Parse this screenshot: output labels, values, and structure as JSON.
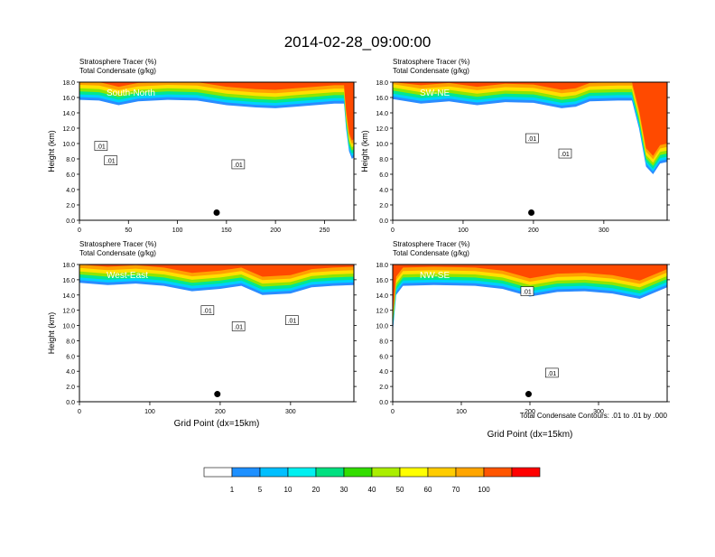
{
  "title": "2014-02-28_09:00:00",
  "colorbar": {
    "levels": [
      "1",
      "5",
      "10",
      "20",
      "30",
      "40",
      "50",
      "60",
      "70",
      "100"
    ],
    "colors": [
      "#ffffff",
      "#1e90ff",
      "#00bfff",
      "#00f0f0",
      "#00e080",
      "#33dd00",
      "#aaee00",
      "#ffff00",
      "#ffcc00",
      "#ffa500",
      "#ff5500",
      "#ff0000"
    ]
  },
  "contour_note": "Total Condensate Contours: .01 to .01 by .000",
  "chart_data": [
    {
      "type": "heatmap",
      "subtitle_1": "Stratosphere Tracer   (%)",
      "subtitle_2": "Total Condensate   (g/kg)",
      "cross_section": "South-North",
      "ylabel": "Height (km)",
      "xlabel": "",
      "ylim": [
        0,
        18
      ],
      "xlim": [
        0,
        280
      ],
      "yticks": [
        "0.0",
        "2.0",
        "4.0",
        "6.0",
        "8.0",
        "10.0",
        "12.0",
        "14.0",
        "16.0",
        "18.0"
      ],
      "xticks": [
        {
          "v": 0,
          "l": "0"
        },
        {
          "v": 50,
          "l": "50"
        },
        {
          "v": 100,
          "l": "100"
        },
        {
          "v": 150,
          "l": "150"
        },
        {
          "v": 200,
          "l": "200"
        },
        {
          "v": 250,
          "l": "250"
        }
      ],
      "tropopause": [
        [
          0,
          15.7
        ],
        [
          20,
          15.6
        ],
        [
          40,
          15.0
        ],
        [
          60,
          15.5
        ],
        [
          90,
          15.7
        ],
        [
          120,
          15.6
        ],
        [
          150,
          15.0
        ],
        [
          180,
          14.7
        ],
        [
          200,
          14.6
        ],
        [
          220,
          14.8
        ],
        [
          240,
          15.0
        ],
        [
          260,
          15.2
        ],
        [
          270,
          15.2
        ],
        [
          272,
          12
        ],
        [
          275,
          9
        ],
        [
          278,
          8
        ],
        [
          280,
          8.2
        ]
      ],
      "contour_labels": [
        {
          "x": 22,
          "y": 9.7,
          "t": ".01"
        },
        {
          "x": 32,
          "y": 7.8,
          "t": ".01"
        },
        {
          "x": 162,
          "y": 7.3,
          "t": ".01"
        }
      ],
      "marker": {
        "x": 140,
        "y": 1.0
      }
    },
    {
      "type": "heatmap",
      "subtitle_1": "Stratosphere Tracer   (%)",
      "subtitle_2": "Total Condensate   (g/kg)",
      "cross_section": "SW-NE",
      "ylabel": "Height (km)",
      "xlabel": "",
      "ylim": [
        0,
        18
      ],
      "xlim": [
        0,
        390
      ],
      "yticks": [
        "0.0",
        "2.0",
        "4.0",
        "6.0",
        "8.0",
        "10.0",
        "12.0",
        "14.0",
        "16.0",
        "18.0"
      ],
      "xticks": [
        {
          "v": 0,
          "l": "0"
        },
        {
          "v": 100,
          "l": "100"
        },
        {
          "v": 200,
          "l": "200"
        },
        {
          "v": 300,
          "l": "300"
        }
      ],
      "tropopause": [
        [
          0,
          15.8
        ],
        [
          40,
          15.2
        ],
        [
          80,
          15.5
        ],
        [
          120,
          15.0
        ],
        [
          160,
          15.4
        ],
        [
          200,
          15.3
        ],
        [
          240,
          14.6
        ],
        [
          260,
          14.8
        ],
        [
          280,
          15.5
        ],
        [
          320,
          15.6
        ],
        [
          340,
          15.6
        ],
        [
          350,
          12
        ],
        [
          360,
          7
        ],
        [
          370,
          6
        ],
        [
          380,
          7.4
        ],
        [
          390,
          7.6
        ]
      ],
      "contour_labels": [
        {
          "x": 198,
          "y": 10.7,
          "t": ".01"
        },
        {
          "x": 245,
          "y": 8.7,
          "t": ".01"
        }
      ],
      "marker": {
        "x": 197,
        "y": 1.0
      }
    },
    {
      "type": "heatmap",
      "subtitle_1": "Stratosphere Tracer   (%)",
      "subtitle_2": "Total Condensate   (g/kg)",
      "cross_section": "West-East",
      "ylabel": "Height (km)",
      "xlabel": "Grid Point (dx=15km)",
      "ylim": [
        0,
        18
      ],
      "xlim": [
        0,
        390
      ],
      "yticks": [
        "0.0",
        "2.0",
        "4.0",
        "6.0",
        "8.0",
        "10.0",
        "12.0",
        "14.0",
        "16.0",
        "18.0"
      ],
      "xticks": [
        {
          "v": 0,
          "l": "0"
        },
        {
          "v": 100,
          "l": "100"
        },
        {
          "v": 200,
          "l": "200"
        },
        {
          "v": 300,
          "l": "300"
        }
      ],
      "tropopause": [
        [
          0,
          15.6
        ],
        [
          40,
          15.3
        ],
        [
          80,
          15.5
        ],
        [
          120,
          15.2
        ],
        [
          160,
          14.5
        ],
        [
          200,
          14.8
        ],
        [
          230,
          15.2
        ],
        [
          260,
          14.0
        ],
        [
          300,
          14.2
        ],
        [
          330,
          15.0
        ],
        [
          360,
          15.2
        ],
        [
          390,
          15.3
        ]
      ],
      "contour_labels": [
        {
          "x": 182,
          "y": 12.0,
          "t": ".01"
        },
        {
          "x": 226,
          "y": 9.9,
          "t": ".01"
        },
        {
          "x": 302,
          "y": 10.7,
          "t": ".01"
        }
      ],
      "marker": {
        "x": 196,
        "y": 1.0
      }
    },
    {
      "type": "heatmap",
      "subtitle_1": "Stratosphere Tracer   (%)",
      "subtitle_2": "Total Condensate   (g/kg)",
      "cross_section": "NW-SE",
      "ylabel": "",
      "xlabel": "Grid Point (dx=15km)",
      "ylim": [
        0,
        18
      ],
      "xlim": [
        0,
        400
      ],
      "yticks": [
        "0.0",
        "2.0",
        "4.0",
        "6.0",
        "8.0",
        "10.0",
        "12.0",
        "14.0",
        "16.0",
        "18.0"
      ],
      "xticks": [
        {
          "v": 0,
          "l": "0"
        },
        {
          "v": 100,
          "l": "100"
        },
        {
          "v": 200,
          "l": "200"
        },
        {
          "v": 300,
          "l": "300"
        }
      ],
      "tropopause": [
        [
          0,
          9
        ],
        [
          5,
          14
        ],
        [
          15,
          15.2
        ],
        [
          60,
          15.3
        ],
        [
          120,
          15.2
        ],
        [
          160,
          14.8
        ],
        [
          200,
          13.8
        ],
        [
          240,
          14.4
        ],
        [
          280,
          14.5
        ],
        [
          320,
          14.2
        ],
        [
          360,
          13.5
        ],
        [
          400,
          15.0
        ]
      ],
      "contour_labels": [
        {
          "x": 196,
          "y": 14.5,
          "t": ".01"
        },
        {
          "x": 232,
          "y": 3.8,
          "t": ".01"
        }
      ],
      "marker": {
        "x": 198,
        "y": 1.0
      }
    }
  ]
}
